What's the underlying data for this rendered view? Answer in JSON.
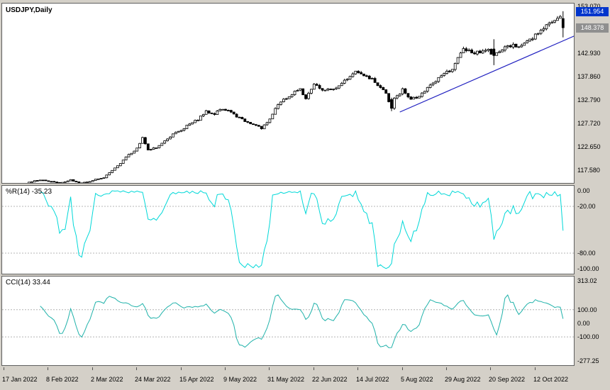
{
  "colors": {
    "background": "#d4d0c8",
    "panel_bg": "#ffffff",
    "candle": "#000000",
    "bull_fill": "#ffffff",
    "bear_fill": "#000000",
    "wpr_line": "#00d8d8",
    "cci_line": "#20b2aa",
    "trendline": "#2020c0",
    "grid_dash": "#b4b4b4",
    "tag_blue_bg": "#0035cc",
    "tag_gray_bg": "#8f8f8f"
  },
  "main_panel": {
    "title": "USDJPY,Daily",
    "axis_labels": [
      {
        "text": "153.070",
        "value": 153.07
      },
      {
        "text": "142.930",
        "value": 142.93
      },
      {
        "text": "137.860",
        "value": 137.86
      },
      {
        "text": "132.790",
        "value": 132.79
      },
      {
        "text": "127.720",
        "value": 127.72
      },
      {
        "text": "122.650",
        "value": 122.65
      },
      {
        "text": "117.580",
        "value": 117.58
      }
    ],
    "price_tags": [
      {
        "text": "151.954",
        "value": 151.954,
        "style": "blue"
      },
      {
        "text": "148.378",
        "value": 148.378,
        "style": "gray"
      }
    ]
  },
  "wpr_panel": {
    "label": "%R(14) -35.23",
    "range": [
      0,
      -100
    ],
    "levels": [
      {
        "text": "0.00",
        "value": 0,
        "dashed": false
      },
      {
        "text": "-20.00",
        "value": -20,
        "dashed": true
      },
      {
        "text": "-80.00",
        "value": -80,
        "dashed": true
      },
      {
        "text": "-100.00",
        "value": -100,
        "dashed": false
      }
    ]
  },
  "cci_panel": {
    "label": "CCI(14) 33.44",
    "range": [
      313.02,
      -277.25
    ],
    "levels": [
      {
        "text": "313.02",
        "value": 313.02,
        "dashed": false
      },
      {
        "text": "100.00",
        "value": 100,
        "dashed": true
      },
      {
        "text": "0.00",
        "value": 0,
        "dashed": false
      },
      {
        "text": "-100.00",
        "value": -100,
        "dashed": true
      },
      {
        "text": "-277.25",
        "value": -277.25,
        "dashed": false
      }
    ]
  },
  "x_axis": {
    "labels": [
      {
        "text": "17 Jan 2022",
        "bar": 0
      },
      {
        "text": "8 Feb 2022",
        "bar": 16
      },
      {
        "text": "2 Mar 2022",
        "bar": 32
      },
      {
        "text": "24 Mar 2022",
        "bar": 48
      },
      {
        "text": "15 Apr 2022",
        "bar": 64
      },
      {
        "text": "9 May 2022",
        "bar": 80
      },
      {
        "text": "31 May 2022",
        "bar": 96
      },
      {
        "text": "22 Jun 2022",
        "bar": 112
      },
      {
        "text": "14 Jul 2022",
        "bar": 128
      },
      {
        "text": "5 Aug 2022",
        "bar": 144
      },
      {
        "text": "29 Aug 2022",
        "bar": 160
      },
      {
        "text": "20 Sep 2022",
        "bar": 176
      },
      {
        "text": "12 Oct 2022",
        "bar": 192
      }
    ]
  },
  "chart_data": {
    "type": "candlestick",
    "symbol": "USDJPY",
    "timeframe": "Daily",
    "ylim": [
      114.9,
      153.6
    ],
    "bars_total": 203,
    "anchors": [
      [
        0,
        114.6
      ],
      [
        5,
        113.9
      ],
      [
        9,
        115.1
      ],
      [
        13,
        115.6
      ],
      [
        16,
        115.3
      ],
      [
        20,
        114.8
      ],
      [
        24,
        115.6
      ],
      [
        27,
        114.9
      ],
      [
        30,
        115.1
      ],
      [
        33,
        115.7
      ],
      [
        36,
        116.0
      ],
      [
        39,
        117.6
      ],
      [
        42,
        119.2
      ],
      [
        45,
        121.0
      ],
      [
        48,
        122.3
      ],
      [
        50,
        124.8
      ],
      [
        52,
        122.0
      ],
      [
        55,
        122.6
      ],
      [
        58,
        123.9
      ],
      [
        61,
        125.4
      ],
      [
        64,
        126.4
      ],
      [
        67,
        127.6
      ],
      [
        70,
        128.6
      ],
      [
        73,
        130.4
      ],
      [
        76,
        129.8
      ],
      [
        79,
        131.0
      ],
      [
        82,
        130.2
      ],
      [
        85,
        128.9
      ],
      [
        88,
        127.8
      ],
      [
        91,
        127.3
      ],
      [
        93,
        126.6
      ],
      [
        96,
        128.8
      ],
      [
        99,
        131.9
      ],
      [
        102,
        133.2
      ],
      [
        105,
        134.5
      ],
      [
        107,
        135.3
      ],
      [
        109,
        132.9
      ],
      [
        112,
        136.2
      ],
      [
        115,
        135.1
      ],
      [
        118,
        134.8
      ],
      [
        121,
        135.8
      ],
      [
        124,
        137.3
      ],
      [
        127,
        138.9
      ],
      [
        130,
        138.1
      ],
      [
        133,
        137.2
      ],
      [
        136,
        135.5
      ],
      [
        138,
        134.0
      ],
      [
        140,
        131.0
      ],
      [
        141,
        133.0
      ],
      [
        144,
        135.0
      ],
      [
        147,
        133.0
      ],
      [
        150,
        133.4
      ],
      [
        153,
        135.4
      ],
      [
        156,
        137.0
      ],
      [
        159,
        138.5
      ],
      [
        162,
        139.5
      ],
      [
        166,
        144.0
      ],
      [
        169,
        143.1
      ],
      [
        172,
        143.0
      ],
      [
        175,
        143.4
      ],
      [
        177,
        142.4
      ],
      [
        180,
        143.9
      ],
      [
        183,
        144.6
      ],
      [
        186,
        144.6
      ],
      [
        189,
        145.4
      ],
      [
        192,
        146.8
      ],
      [
        195,
        148.6
      ],
      [
        198,
        149.7
      ],
      [
        201,
        150.4
      ],
      [
        202,
        148.4
      ]
    ],
    "special_candles": {
      "140": [
        132.9,
        133.3,
        130.4,
        131.0
      ],
      "177": [
        143.8,
        145.9,
        140.31,
        142.4
      ],
      "202": [
        150.35,
        151.95,
        146.3,
        148.38
      ]
    },
    "trendline": {
      "from_bar": 143,
      "from_price": 130.2,
      "to_bar": 206,
      "to_price": 146.6
    },
    "indicators": [
      {
        "name": "Williams %R",
        "period": 14,
        "current": -35.23,
        "range": [
          0,
          -100
        ]
      },
      {
        "name": "CCI",
        "period": 14,
        "current": 33.44,
        "scale_max": 313.02,
        "scale_min": -277.25
      }
    ]
  }
}
